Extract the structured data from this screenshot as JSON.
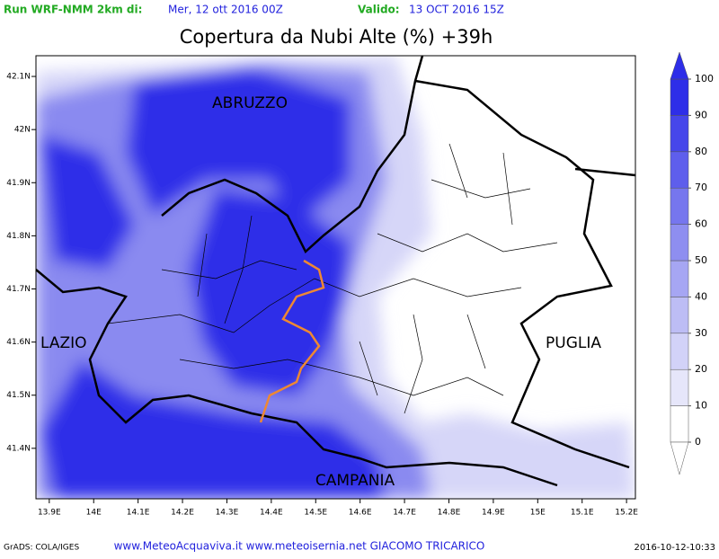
{
  "header": {
    "run_label": "Run WRF-NMM 2km di:",
    "run_date": "Mer, 12 ott 2016 00Z",
    "valid_label": "Valido:",
    "valid_date": "13 OCT 2016 15Z"
  },
  "title": "Copertura da Nubi Alte (%) +39h",
  "map": {
    "xlim": [
      13.87,
      15.22
    ],
    "ylim": [
      41.305,
      42.139
    ],
    "x_ticks": [
      {
        "value": 13.9,
        "label": "13.9E"
      },
      {
        "value": 14.0,
        "label": "14E"
      },
      {
        "value": 14.1,
        "label": "14.1E"
      },
      {
        "value": 14.2,
        "label": "14.2E"
      },
      {
        "value": 14.3,
        "label": "14.3E"
      },
      {
        "value": 14.4,
        "label": "14.4E"
      },
      {
        "value": 14.5,
        "label": "14.5E"
      },
      {
        "value": 14.6,
        "label": "14.6E"
      },
      {
        "value": 14.7,
        "label": "14.7E"
      },
      {
        "value": 14.8,
        "label": "14.8E"
      },
      {
        "value": 14.9,
        "label": "14.9E"
      },
      {
        "value": 15.0,
        "label": "15E"
      },
      {
        "value": 15.1,
        "label": "15.1E"
      },
      {
        "value": 15.2,
        "label": "15.2E"
      }
    ],
    "y_ticks": [
      {
        "value": 41.4,
        "label": "41.4N"
      },
      {
        "value": 41.5,
        "label": "41.5N"
      },
      {
        "value": 41.6,
        "label": "41.6N"
      },
      {
        "value": 41.7,
        "label": "41.7N"
      },
      {
        "value": 41.8,
        "label": "41.8N"
      },
      {
        "value": 41.9,
        "label": "41.9N"
      },
      {
        "value": 42.0,
        "label": "42N"
      },
      {
        "value": 42.1,
        "label": "42.1N"
      }
    ],
    "regions": [
      "ABRUZZO",
      "LAZIO",
      "PUGLIA",
      "CAMPANIA"
    ]
  },
  "colorbar": {
    "ticks": [
      0,
      10,
      20,
      30,
      40,
      50,
      60,
      70,
      80,
      90,
      100
    ],
    "colors": [
      "#ffffff",
      "#e6e6fa",
      "#d2d2f8",
      "#bdbdf5",
      "#a6a6f3",
      "#8e8ef0",
      "#7676ee",
      "#5e5eec",
      "#4646ea",
      "#2e2ee8"
    ]
  },
  "footer": {
    "left": "GrADS: COLA/IGES",
    "center": "www.MeteoAcquaviva.it www.meteoisernia.net GIACOMO TRICARICO",
    "right": "2016-10-12-10:33"
  }
}
